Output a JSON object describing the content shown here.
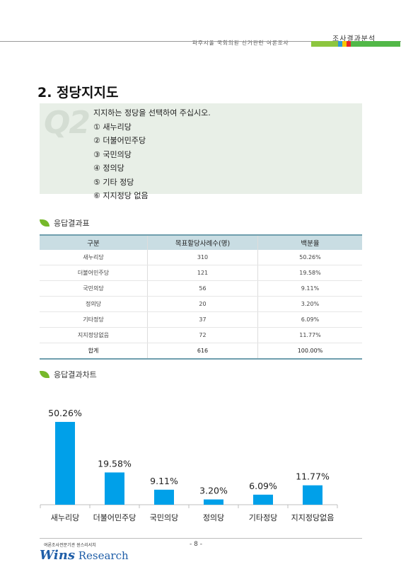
{
  "header": {
    "right_title": "조사결과분석",
    "subtitle": "파주시을 국회의원 선거관련 여론조사",
    "bar_colors": [
      "#8dc63f",
      "#2e9bd6",
      "#f7c600",
      "#e8262a",
      "#52b848"
    ]
  },
  "section_title": "2. 정당지지도",
  "question": {
    "badge": "Q2",
    "text": "지지하는 정당을 선택하여 주십시오.",
    "options": [
      "① 새누리당",
      "② 더불어민주당",
      "③ 국민의당",
      "④ 정의당",
      "⑤ 기타 정당",
      "⑥ 지지정당 없음"
    ]
  },
  "table_heading": "응답결과표",
  "table": {
    "headers": [
      "구분",
      "목표할당사례수(명)",
      "백분율"
    ],
    "rows": [
      [
        "새누리당",
        "310",
        "50.26%"
      ],
      [
        "더불어민주당",
        "121",
        "19.58%"
      ],
      [
        "국민의당",
        "56",
        "9.11%"
      ],
      [
        "정의당",
        "20",
        "3.20%"
      ],
      [
        "기타정당",
        "37",
        "6.09%"
      ],
      [
        "지지정당없음",
        "72",
        "11.77%"
      ]
    ],
    "total": [
      "합계",
      "616",
      "100.00%"
    ]
  },
  "chart_heading": "응답결과차트",
  "chart_data": {
    "type": "bar",
    "categories": [
      "새누리당",
      "더불어민주당",
      "국민의당",
      "정의당",
      "기타정당",
      "지지정당없음"
    ],
    "values": [
      50.26,
      19.58,
      9.11,
      3.2,
      6.09,
      11.77
    ],
    "data_labels": [
      "50.26%",
      "19.58%",
      "9.11%",
      "3.20%",
      "6.09%",
      "11.77%"
    ],
    "title": "",
    "xlabel": "",
    "ylabel": "",
    "ylim": [
      0,
      55
    ],
    "bar_color": "#00a0e9",
    "grid": false
  },
  "footer": {
    "page_number": "- 8 -",
    "logo_small": "여론조사전문기관 윈스리서치",
    "logo_w": "Wins",
    "logo_rest": " Research"
  }
}
